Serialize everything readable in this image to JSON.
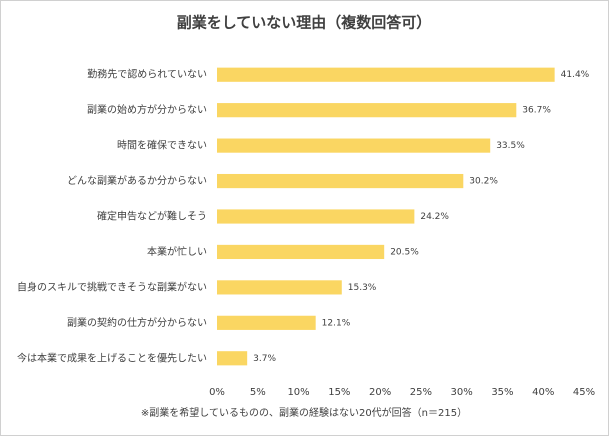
{
  "chart_data": {
    "type": "hbar",
    "title": "副業をしていない理由（複数回答可）",
    "categories": [
      "勤務先で認められていない",
      "副業の始め方が分からない",
      "時間を確保できない",
      "どんな副業があるか分からない",
      "確定申告などが難しそう",
      "本業が忙しい",
      "自身のスキルで挑戦できそうな副業がない",
      "副業の契約の仕方が分からない",
      "今は本業で成果を上げることを優先したい"
    ],
    "values": [
      41.4,
      36.7,
      33.5,
      30.2,
      24.2,
      20.5,
      15.3,
      12.1,
      3.7
    ],
    "value_labels": [
      "41.4%",
      "36.7%",
      "33.5%",
      "30.2%",
      "24.2%",
      "20.5%",
      "15.3%",
      "12.1%",
      "3.7%"
    ],
    "color": "#fad662",
    "xlim": [
      0,
      45
    ],
    "xticks": [
      {
        "value": 0,
        "label": "0%"
      },
      {
        "value": 5,
        "label": "5%"
      },
      {
        "value": 10,
        "label": "10%"
      },
      {
        "value": 15,
        "label": "15%"
      },
      {
        "value": 20,
        "label": "20%"
      },
      {
        "value": 25,
        "label": "25%"
      },
      {
        "value": 30,
        "label": "30%"
      },
      {
        "value": 35,
        "label": "35%"
      },
      {
        "value": 40,
        "label": "40%"
      },
      {
        "value": 45,
        "label": "45%"
      }
    ],
    "annotation": "※副業を希望しているものの、副業の経験はない20代が回答（n＝215）"
  }
}
